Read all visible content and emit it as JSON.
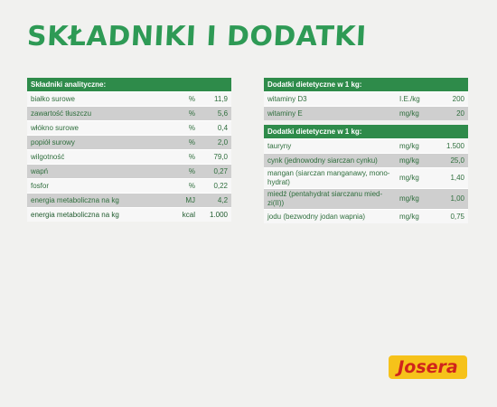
{
  "title": "SKŁADNIKI I DODATKI",
  "analytical": {
    "header": "Składniki analityczne:",
    "rows": [
      {
        "name": "białko surowe",
        "unit": "%",
        "value": "11,9"
      },
      {
        "name": "zawartość tłuszczu",
        "unit": "%",
        "value": "5,6"
      },
      {
        "name": "włókno surowe",
        "unit": "%",
        "value": "0,4"
      },
      {
        "name": "popiół surowy",
        "unit": "%",
        "value": "2,0"
      },
      {
        "name": "wilgotność",
        "unit": "%",
        "value": "79,0"
      },
      {
        "name": "wapń",
        "unit": "%",
        "value": "0,27"
      },
      {
        "name": "fosfor",
        "unit": "%",
        "value": "0,22"
      },
      {
        "name": "energia metaboliczna na kg",
        "unit": "MJ",
        "value": "4,2"
      },
      {
        "name": "energia metaboliczna na kg",
        "unit": "kcal",
        "value": "1.000"
      }
    ]
  },
  "vitamins": {
    "header": "Dodatki dietetyczne w 1 kg:",
    "rows": [
      {
        "name": "witaminy D3",
        "unit": "I.E./kg",
        "value": "200"
      },
      {
        "name": "witaminy E",
        "unit": "mg/kg",
        "value": "20"
      }
    ]
  },
  "additives": {
    "header": "Dodatki dietetyczne w 1 kg:",
    "rows": [
      {
        "name": "tauryny",
        "unit": "mg/kg",
        "value": "1.500"
      },
      {
        "name": "cynk (jednowodny siarczan cynku)",
        "unit": "mg/kg",
        "value": "25,0"
      },
      {
        "name": "mangan (siarczan manganawy, mono-hydrat)",
        "unit": "mg/kg",
        "value": "1,40"
      },
      {
        "name": "miedź (pentahydrat siarczanu mied-zi(II))",
        "unit": "mg/kg",
        "value": "1,00"
      },
      {
        "name": "jodu (bezwodny jodan wapnia)",
        "unit": "mg/kg",
        "value": "0,75"
      }
    ]
  },
  "logo": {
    "text": "Josera",
    "bg_color": "#f6c21a",
    "text_color": "#d0241c"
  },
  "colors": {
    "title": "#2e9a55",
    "header": "#2e8b4a"
  }
}
